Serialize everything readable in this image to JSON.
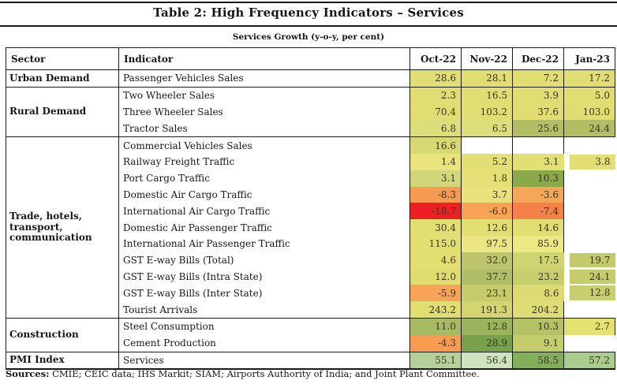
{
  "page": {
    "title": "Table 2: High Frequency Indicators – Services",
    "subtitle": "Services Growth (y-o-y, per cent)",
    "sources_label": "Sources:",
    "sources_text": " CMIE; CEIC data; IHS Markit; SIAM; Airports Authority of India; and Joint Plant Committee."
  },
  "table": {
    "columns": [
      "Sector",
      "Indicator",
      "Oct-22",
      "Nov-22",
      "Dec-22",
      "Jan-23"
    ],
    "heat_colors": {
      "strong_negative": "#ec2024",
      "negative": "#f7a254",
      "neutral": "#e0dd72",
      "positive": "#8aa94a"
    },
    "sections": [
      {
        "sector": "Urban Demand",
        "rows": [
          {
            "indicator": "Passenger Vehicles Sales",
            "values": [
              "28.6",
              "28.1",
              "7.2",
              "17.2"
            ],
            "colors": [
              "#e0dd72",
              "#e0dd72",
              "#e0dd72",
              "#e0dd72"
            ]
          }
        ]
      },
      {
        "sector": "Rural Demand",
        "rows": [
          {
            "indicator": "Two Wheeler Sales",
            "values": [
              "2.3",
              "16.5",
              "3.9",
              "5.0"
            ],
            "colors": [
              "#e0dd72",
              "#e0dd72",
              "#e0dd72",
              "#e0dd72"
            ]
          },
          {
            "indicator": "Three Wheeler Sales",
            "values": [
              "70.4",
              "103.2",
              "37.6",
              "103.0"
            ],
            "colors": [
              "#e0dd72",
              "#e0dd72",
              "#e0dd72",
              "#e0dd72"
            ]
          },
          {
            "indicator": "Tractor Sales",
            "values": [
              "6.8",
              "6.5",
              "25.6",
              "24.4"
            ],
            "colors": [
              "#dedd7b",
              "#dedd7b",
              "#b2bd64",
              "#b2bd64"
            ]
          }
        ]
      },
      {
        "sector": "Trade, hotels, transport, communication",
        "rows": [
          {
            "indicator": "Commercial Vehicles Sales",
            "values": [
              "16.6",
              null,
              null,
              null
            ],
            "colors": [
              "#d8d873",
              null,
              null,
              null
            ]
          },
          {
            "indicator": "Railway Freight Traffic",
            "values": [
              "1.4",
              "5.2",
              "3.1",
              "3.8"
            ],
            "colors": [
              "#eae47e",
              "#e2df74",
              "#e2df74",
              "#e2df74"
            ],
            "jan_gap": true
          },
          {
            "indicator": "Port Cargo Traffic",
            "values": [
              "3.1",
              "1.8",
              "10.3",
              null
            ],
            "colors": [
              "#d2d67b",
              "#e4e076",
              "#8aa94a",
              null
            ]
          },
          {
            "indicator": "Domestic Air Cargo Traffic",
            "values": [
              "-8.3",
              "3.7",
              "-3.6",
              null
            ],
            "colors": [
              "#f49a51",
              "#e8e27c",
              "#f5a656",
              null
            ]
          },
          {
            "indicator": "International Air Cargo Traffic",
            "values": [
              "-18.7",
              "-6.0",
              "-7.4",
              null
            ],
            "colors": [
              "#ec2024",
              "#f7a254",
              "#f2814a",
              null
            ]
          },
          {
            "indicator": "Domestic Air Passenger Traffic",
            "values": [
              "30.4",
              "12.6",
              "14.6",
              null
            ],
            "colors": [
              "#e2df72",
              "#e2df72",
              "#e2df72",
              null
            ]
          },
          {
            "indicator": "International Air Passenger Traffic",
            "values": [
              "115.0",
              "97.5",
              "85.9",
              null
            ],
            "colors": [
              "#e2df72",
              "#ebe583",
              "#ece884",
              null
            ]
          },
          {
            "indicator": "GST E-way Bills (Total)",
            "values": [
              "4.6",
              "32.0",
              "17.5",
              "19.7"
            ],
            "colors": [
              "#e2df72",
              "#bcc46d",
              "#d0d371",
              "#c4ca6b"
            ],
            "jan_gap": true
          },
          {
            "indicator": "GST E-way Bills (Intra State)",
            "values": [
              "12.0",
              "37.7",
              "23.2",
              "24.1"
            ],
            "colors": [
              "#e0dd70",
              "#b2bd68",
              "#c8cd6d",
              "#c6cc6c"
            ],
            "jan_gap": true
          },
          {
            "indicator": "GST E-way Bills (Inter State)",
            "values": [
              "-5.9",
              "23.1",
              "8.6",
              "12.8"
            ],
            "colors": [
              "#f7a458",
              "#c6cc6c",
              "#dcda72",
              "#c9ce6e"
            ],
            "jan_gap": true
          },
          {
            "indicator": "Tourist Arrivals",
            "values": [
              "243.2",
              "191.3",
              "204.2",
              null
            ],
            "colors": [
              "#e0de72",
              "#d4d572",
              "#dedc74",
              null
            ]
          }
        ]
      },
      {
        "sector": "Construction",
        "rows": [
          {
            "indicator": "Steel Consumption",
            "values": [
              "11.0",
              "12.8",
              "10.3",
              "2.7"
            ],
            "colors": [
              "#a8b964",
              "#9cb35e",
              "#b4c167",
              "#e4e170"
            ]
          },
          {
            "indicator": "Cement Production",
            "values": [
              "-4.3",
              "28.9",
              "9.1",
              null
            ],
            "colors": [
              "#f79b51",
              "#77a24b",
              "#c4cc6b",
              null
            ]
          }
        ]
      },
      {
        "sector": "PMI Index",
        "rows": [
          {
            "indicator": "Services",
            "values": [
              "55.1",
              "56.4",
              "58.5",
              "57.2"
            ],
            "colors": [
              "#b5d09a",
              "#cfe3c0",
              "#82b05a",
              "#a9cd8e"
            ]
          }
        ]
      }
    ]
  }
}
